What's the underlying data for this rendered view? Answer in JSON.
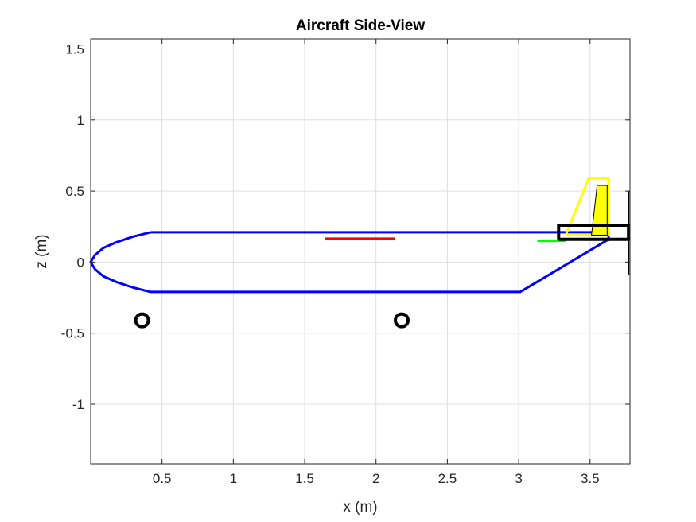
{
  "chart_data": {
    "type": "line",
    "title": "Aircraft Side-View",
    "xlabel": "x (m)",
    "ylabel": "z (m)",
    "xlim": [
      0,
      3.78
    ],
    "ylim": [
      -1.42,
      1.57
    ],
    "xticks": [
      0.5,
      1,
      1.5,
      2,
      2.5,
      3,
      3.5
    ],
    "xtick_labels": [
      "0.5",
      "1",
      "1.5",
      "2",
      "2.5",
      "3",
      "3.5"
    ],
    "yticks": [
      -1,
      -0.5,
      0,
      0.5,
      1,
      1.5
    ],
    "ytick_labels": [
      "-1",
      "-0.5",
      "0",
      "0.5",
      "1",
      "1.5"
    ],
    "grid": true,
    "colors": {
      "fuselage": "#0000ff",
      "wing": "#ff0000",
      "horizontal_tail": "#00ff00",
      "vertical_tail": "#ffff00",
      "outline": "#000000"
    },
    "series": [
      {
        "kind": "fuselage",
        "color": "#0000ff",
        "x": [
          0.42,
          0.3,
          0.18,
          0.09,
          0.03,
          0.0,
          0.03,
          0.09,
          0.18,
          0.3,
          0.42,
          3.01,
          3.63,
          3.63,
          0.42
        ],
        "y": [
          0.21,
          0.18,
          0.14,
          0.1,
          0.05,
          0.0,
          -0.05,
          -0.1,
          -0.14,
          -0.18,
          -0.21,
          -0.21,
          0.16,
          0.21,
          0.21
        ]
      },
      {
        "kind": "wing",
        "color": "#ff0000",
        "x": [
          1.64,
          2.13
        ],
        "y": [
          0.165,
          0.165
        ]
      },
      {
        "kind": "horizontal-tail",
        "color": "#00ff00",
        "x": [
          3.13,
          3.33
        ],
        "y": [
          0.15,
          0.15
        ]
      },
      {
        "kind": "vertical-tail-outline",
        "color": "#ffff00",
        "x": [
          3.33,
          3.49,
          3.63,
          3.63,
          3.33
        ],
        "y": [
          0.19,
          0.59,
          0.59,
          0.19,
          0.19
        ]
      },
      {
        "kind": "rudder",
        "color": "#ffff00",
        "stroke": "#000000",
        "x": [
          3.51,
          3.55,
          3.62,
          3.62,
          3.51
        ],
        "y": [
          0.19,
          0.54,
          0.54,
          0.19,
          0.19
        ]
      },
      {
        "kind": "motor-box",
        "color": "#000000",
        "x": [
          3.28,
          3.77,
          3.77,
          3.28,
          3.28
        ],
        "y": [
          0.16,
          0.16,
          0.26,
          0.26,
          0.16
        ]
      },
      {
        "kind": "propeller",
        "color": "#000000",
        "x": [
          3.77,
          3.77
        ],
        "y": [
          -0.09,
          0.5
        ]
      }
    ],
    "wheels": [
      {
        "x": 0.36,
        "y": -0.41
      },
      {
        "x": 2.18,
        "y": -0.41
      }
    ]
  }
}
